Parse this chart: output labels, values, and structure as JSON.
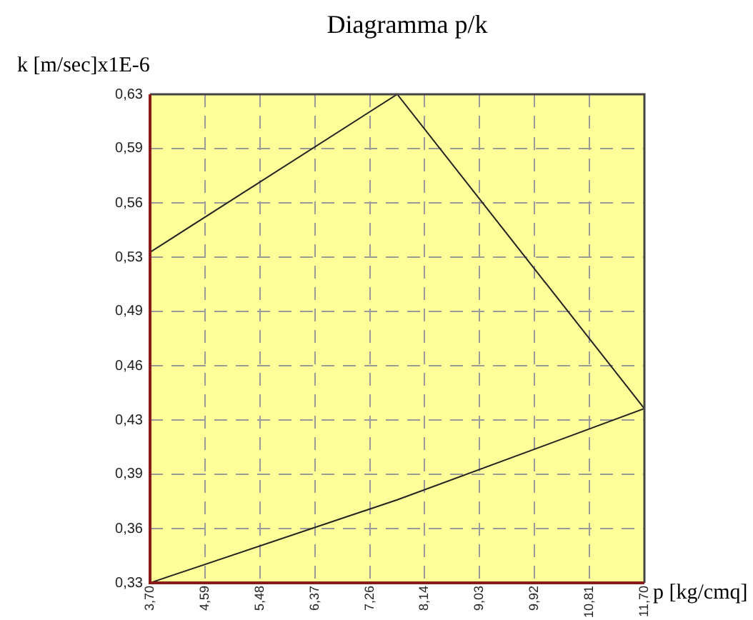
{
  "chart_data": {
    "type": "line",
    "title": "Diagramma p/k",
    "xlabel": "p [kg/cmq]",
    "ylabel": "k [m/sec]x1E-6",
    "x": [
      3.7,
      7.7,
      11.7,
      7.7,
      3.7
    ],
    "series": [
      {
        "color": "#222222",
        "values": [
          0.327,
          0.378,
          0.434,
          0.627,
          0.53
        ]
      }
    ],
    "xlim": [
      3.7,
      11.7
    ],
    "xticks": [
      {
        "value": 3.7,
        "label": "3,70"
      },
      {
        "value": 4.589,
        "label": "4,59"
      },
      {
        "value": 5.478,
        "label": "5,48"
      },
      {
        "value": 6.367,
        "label": "6,37"
      },
      {
        "value": 7.256,
        "label": "7,26"
      },
      {
        "value": 8.144,
        "label": "8,14"
      },
      {
        "value": 9.033,
        "label": "9,03"
      },
      {
        "value": 9.922,
        "label": "9,92"
      },
      {
        "value": 10.811,
        "label": "10,81"
      },
      {
        "value": 11.7,
        "label": "11,70"
      }
    ],
    "ylim": [
      0.327,
      0.627
    ],
    "yticks": [
      {
        "value": 0.327,
        "label": "0,33"
      },
      {
        "value": 0.3603,
        "label": "0,36"
      },
      {
        "value": 0.3937,
        "label": "0,39"
      },
      {
        "value": 0.427,
        "label": "0,43"
      },
      {
        "value": 0.4603,
        "label": "0,46"
      },
      {
        "value": 0.4937,
        "label": "0,49"
      },
      {
        "value": 0.527,
        "label": "0,53"
      },
      {
        "value": 0.5603,
        "label": "0,56"
      },
      {
        "value": 0.5937,
        "label": "0,59"
      },
      {
        "value": 0.627,
        "label": "0,63"
      }
    ],
    "grid": true,
    "marker": "none"
  }
}
